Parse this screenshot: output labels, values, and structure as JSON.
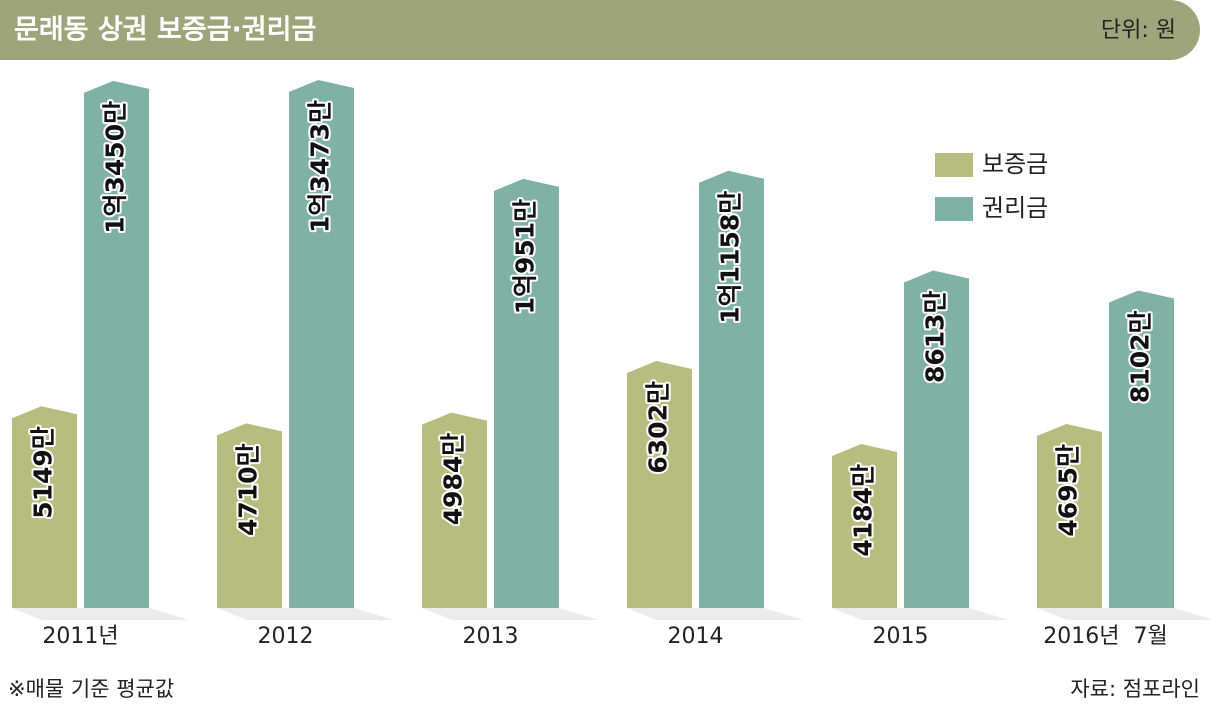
{
  "chart_data": {
    "type": "bar",
    "title": "문래동 상권 보증금·권리금",
    "unit_note": "단위: 원",
    "footnote": "※매물 기준 평균값",
    "source": "자료: 점포라인",
    "categories": [
      "2011년",
      "2012",
      "2013",
      "2014",
      "2015",
      "2016년  7월"
    ],
    "series": [
      {
        "name": "보증금",
        "color": "#b6bd7e",
        "values": [
          5149,
          4710,
          4984,
          6302,
          4184,
          4695
        ],
        "value_labels": [
          "5149만",
          "4710만",
          "4984만",
          "6302만",
          "4184만",
          "4695만"
        ]
      },
      {
        "name": "권리금",
        "color": "#7fb2a4",
        "values": [
          13450,
          13473,
          10951,
          11158,
          8613,
          8102
        ],
        "value_labels": [
          "1억3450만",
          "1억3473만",
          "1억951만",
          "1억1158만",
          "8613만",
          "8102만"
        ]
      }
    ]
  }
}
